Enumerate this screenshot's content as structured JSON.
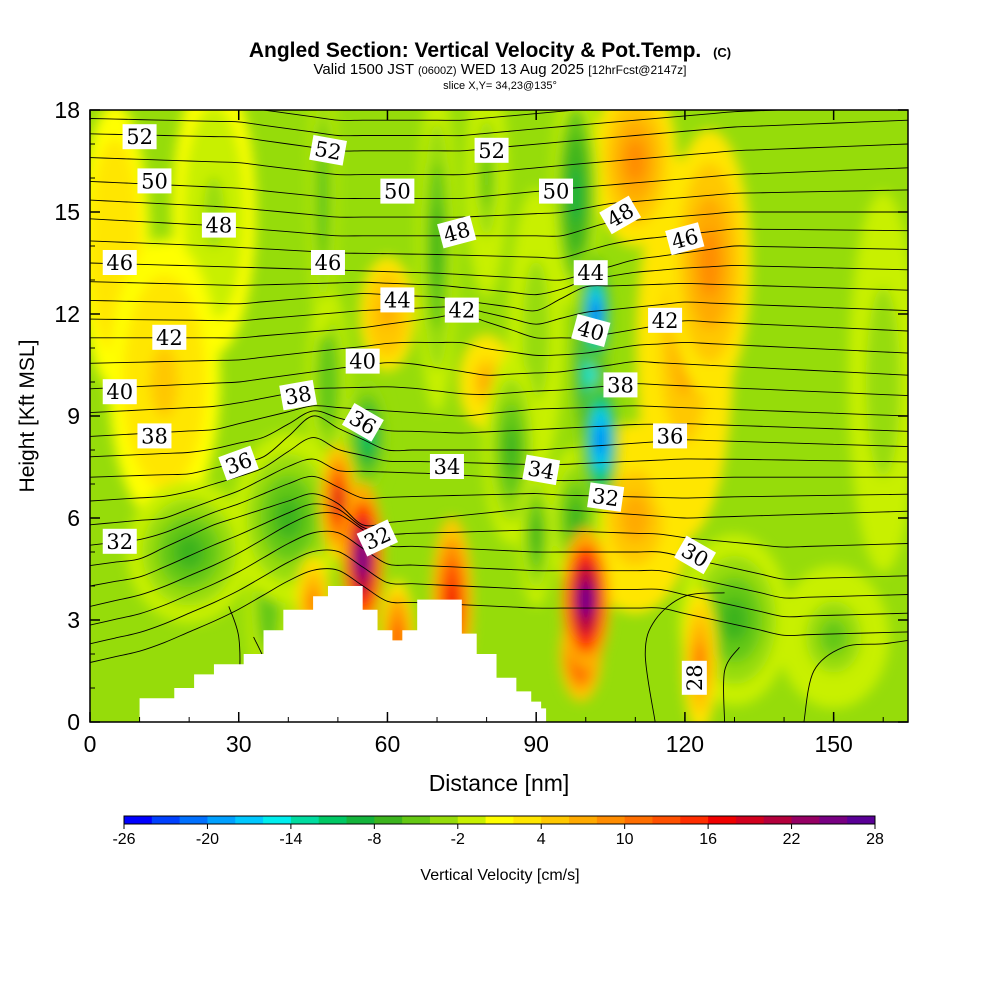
{
  "title": {
    "main": "Angled Section: Vertical Velocity & Pot.Temp.",
    "main_unit": "(C)",
    "valid_prefix": "Valid 1500 JST",
    "valid_utc": "(0600Z)",
    "valid_date": "WED 13 Aug 2025",
    "valid_fcst": "[12hrFcst@2147z]",
    "slice": "slice X,Y= 34,23@135°"
  },
  "chart_data": {
    "type": "heatmap",
    "xlabel": "Distance [nm]",
    "ylabel": "Height [Kft MSL]",
    "xlim": [
      0,
      165
    ],
    "ylim": [
      0,
      18
    ],
    "x_ticks": [
      "0",
      "30",
      "60",
      "90",
      "120",
      "150"
    ],
    "y_ticks": [
      "0",
      "3",
      "6",
      "9",
      "12",
      "15",
      "18"
    ],
    "grid": false,
    "colorbar": {
      "label": "Vertical Velocity [cm/s]",
      "placement": "bottom",
      "min": -26,
      "max": 28,
      "step": 2,
      "tick_labels": [
        "-26",
        "-20",
        "-14",
        "-8",
        "-2",
        "4",
        "10",
        "16",
        "22",
        "28"
      ],
      "colors": [
        "#0000ff",
        "#0040ff",
        "#0070ff",
        "#00a0ff",
        "#00c8ff",
        "#00eeee",
        "#00dca0",
        "#00c864",
        "#14b43c",
        "#3cb41e",
        "#64c814",
        "#96dc0a",
        "#c8f000",
        "#ffff00",
        "#ffe600",
        "#ffc800",
        "#ffaa00",
        "#ff8c00",
        "#ff6e00",
        "#ff5000",
        "#ff2d00",
        "#f00000",
        "#d2001e",
        "#b4003c",
        "#960064",
        "#780082",
        "#5a0096"
      ]
    },
    "w_field": {
      "description_units": "cm/s",
      "background": 1,
      "cells": [
        {
          "x": 55,
          "z": 4.8,
          "sx": 3.0,
          "sz": 1.6,
          "v": 27
        },
        {
          "x": 50,
          "z": 6.5,
          "sx": 2.5,
          "sz": 1.2,
          "v": 18
        },
        {
          "x": 100,
          "z": 3.6,
          "sx": 3.5,
          "sz": 1.5,
          "v": 27
        },
        {
          "x": 99,
          "z": 2.0,
          "sx": 3.0,
          "sz": 1.0,
          "v": 16
        },
        {
          "x": 73,
          "z": 3.5,
          "sx": 3.0,
          "sz": 1.8,
          "v": 17
        },
        {
          "x": 62,
          "z": 2.5,
          "sx": 2.5,
          "sz": 1.2,
          "v": 12
        },
        {
          "x": 45,
          "z": 3.5,
          "sx": 2.5,
          "sz": 1.0,
          "v": 10
        },
        {
          "x": 123,
          "z": 1.8,
          "sx": 2.5,
          "sz": 1.5,
          "v": 10
        },
        {
          "x": 110,
          "z": 6.0,
          "sx": 8.0,
          "sz": 2.0,
          "v": 6
        },
        {
          "x": 125,
          "z": 13.5,
          "sx": 6.0,
          "sz": 2.8,
          "v": 9
        },
        {
          "x": 120,
          "z": 11.0,
          "sx": 7.0,
          "sz": 4.0,
          "v": 6
        },
        {
          "x": 110,
          "z": 16.5,
          "sx": 6.0,
          "sz": 1.8,
          "v": 8
        },
        {
          "x": 60,
          "z": 12.0,
          "sx": 4.0,
          "sz": 1.2,
          "v": 7
        },
        {
          "x": 80,
          "z": 10.0,
          "sx": 4.0,
          "sz": 1.0,
          "v": 6
        },
        {
          "x": 102,
          "z": 12.0,
          "sx": 2.2,
          "sz": 1.2,
          "v": -24
        },
        {
          "x": 103,
          "z": 8.3,
          "sx": 2.6,
          "sz": 1.4,
          "v": -22
        },
        {
          "x": 101,
          "z": 10.5,
          "sx": 3.0,
          "sz": 2.5,
          "v": -15
        },
        {
          "x": 98,
          "z": 15.5,
          "sx": 3.5,
          "sz": 2.5,
          "v": -10
        },
        {
          "x": 98,
          "z": 6.0,
          "sx": 4.0,
          "sz": 1.5,
          "v": -8
        },
        {
          "x": 56,
          "z": 8.4,
          "sx": 3.0,
          "sz": 1.2,
          "v": -12
        },
        {
          "x": 48,
          "z": 10.0,
          "sx": 3.0,
          "sz": 2.0,
          "v": -6
        },
        {
          "x": 40,
          "z": 6.0,
          "sx": 8.0,
          "sz": 1.8,
          "v": -8
        },
        {
          "x": 20,
          "z": 5.0,
          "sx": 9.0,
          "sz": 1.5,
          "v": -7
        },
        {
          "x": 36,
          "z": 3.5,
          "sx": 3.0,
          "sz": 1.8,
          "v": -6
        },
        {
          "x": 85,
          "z": 8.0,
          "sx": 4.0,
          "sz": 2.0,
          "v": -8
        },
        {
          "x": 90,
          "z": 5.5,
          "sx": 2.5,
          "sz": 1.5,
          "v": -8
        },
        {
          "x": 70,
          "z": 14.0,
          "sx": 2.8,
          "sz": 3.5,
          "v": -8
        },
        {
          "x": 47,
          "z": 15.5,
          "sx": 2.0,
          "sz": 3.0,
          "v": -6
        },
        {
          "x": 80,
          "z": 16.0,
          "sx": 3.0,
          "sz": 2.5,
          "v": -5
        },
        {
          "x": 90,
          "z": 11.5,
          "sx": 4.0,
          "sz": 3.0,
          "v": -4
        },
        {
          "x": 130,
          "z": 3.0,
          "sx": 8.0,
          "sz": 1.8,
          "v": -7
        },
        {
          "x": 150,
          "z": 2.5,
          "sx": 8.0,
          "sz": 1.5,
          "v": -5
        },
        {
          "x": 160,
          "z": 10.0,
          "sx": 5.0,
          "sz": 4.0,
          "v": -4
        },
        {
          "x": 15,
          "z": 10.0,
          "sx": 8.0,
          "sz": 3.0,
          "v": 4
        },
        {
          "x": 25,
          "z": 15.0,
          "sx": 6.0,
          "sz": 3.0,
          "v": -3
        },
        {
          "x": 5,
          "z": 14.0,
          "sx": 5.0,
          "sz": 3.0,
          "v": 3
        }
      ]
    },
    "terrain_profile": [
      [
        0,
        0
      ],
      [
        10,
        0
      ],
      [
        10,
        0.7
      ],
      [
        15,
        0.7
      ],
      [
        17,
        1.0
      ],
      [
        21,
        1.4
      ],
      [
        25,
        1.7
      ],
      [
        31,
        2.0
      ],
      [
        35,
        2.7
      ],
      [
        39,
        3.3
      ],
      [
        45,
        3.7
      ],
      [
        48,
        4.0
      ],
      [
        52,
        4.0
      ],
      [
        55,
        3.3
      ],
      [
        58,
        2.7
      ],
      [
        61,
        2.4
      ],
      [
        63,
        2.7
      ],
      [
        66,
        3.6
      ],
      [
        72,
        3.6
      ],
      [
        75,
        2.6
      ],
      [
        78,
        2.0
      ],
      [
        82,
        1.3
      ],
      [
        86,
        0.9
      ],
      [
        89,
        0.6
      ],
      [
        91,
        0.4
      ],
      [
        92,
        0
      ],
      [
        165,
        0
      ]
    ],
    "theta_isolines": [
      {
        "theta": 52,
        "pts": [
          [
            0,
            17.3
          ],
          [
            30,
            17.2
          ],
          [
            50,
            16.8
          ],
          [
            75,
            16.8
          ],
          [
            98,
            17.1
          ],
          [
            130,
            17.5
          ],
          [
            165,
            17.7
          ]
        ]
      },
      {
        "theta": 50,
        "pts": [
          [
            0,
            15.9
          ],
          [
            30,
            15.7
          ],
          [
            50,
            15.4
          ],
          [
            75,
            15.4
          ],
          [
            97,
            15.7
          ],
          [
            130,
            16.1
          ],
          [
            165,
            16.3
          ]
        ]
      },
      {
        "theta": 48,
        "pts": [
          [
            0,
            14.8
          ],
          [
            25,
            14.6
          ],
          [
            50,
            14.3
          ],
          [
            72,
            14.3
          ],
          [
            95,
            14.3
          ],
          [
            105,
            14.7
          ],
          [
            130,
            15.0
          ],
          [
            165,
            15.0
          ]
        ]
      },
      {
        "theta": 46,
        "pts": [
          [
            0,
            13.5
          ],
          [
            25,
            13.4
          ],
          [
            48,
            13.3
          ],
          [
            70,
            13.2
          ],
          [
            95,
            13.0
          ],
          [
            110,
            13.6
          ],
          [
            130,
            14.0
          ],
          [
            165,
            13.9
          ]
        ]
      },
      {
        "theta": 44,
        "pts": [
          [
            0,
            12.4
          ],
          [
            30,
            12.3
          ],
          [
            55,
            12.6
          ],
          [
            70,
            12.5
          ],
          [
            90,
            12.1
          ],
          [
            100,
            12.8
          ],
          [
            120,
            12.9
          ],
          [
            165,
            12.7
          ]
        ]
      },
      {
        "theta": 42,
        "pts": [
          [
            0,
            11.3
          ],
          [
            30,
            11.3
          ],
          [
            55,
            11.6
          ],
          [
            75,
            12.0
          ],
          [
            90,
            11.3
          ],
          [
            100,
            11.3
          ],
          [
            120,
            11.8
          ],
          [
            165,
            11.5
          ]
        ]
      },
      {
        "theta": 40,
        "pts": [
          [
            0,
            9.8
          ],
          [
            30,
            10.0
          ],
          [
            50,
            10.4
          ],
          [
            62,
            10.6
          ],
          [
            80,
            10.2
          ],
          [
            95,
            10.3
          ],
          [
            110,
            10.6
          ],
          [
            165,
            10.2
          ]
        ]
      },
      {
        "theta": 38,
        "pts": [
          [
            0,
            8.4
          ],
          [
            25,
            8.6
          ],
          [
            45,
            9.3
          ],
          [
            55,
            9.2
          ],
          [
            75,
            9.0
          ],
          [
            90,
            9.2
          ],
          [
            110,
            9.3
          ],
          [
            165,
            9.0
          ]
        ]
      },
      {
        "theta": 36,
        "pts": [
          [
            0,
            7.2
          ],
          [
            20,
            7.3
          ],
          [
            35,
            7.8
          ],
          [
            45,
            9.0
          ],
          [
            52,
            8.5
          ],
          [
            60,
            8.0
          ],
          [
            90,
            8.0
          ],
          [
            120,
            8.3
          ],
          [
            165,
            8.1
          ]
        ]
      },
      {
        "theta": 34,
        "pts": [
          [
            0,
            5.8
          ],
          [
            15,
            6.0
          ],
          [
            30,
            6.8
          ],
          [
            44,
            7.8
          ],
          [
            50,
            7.4
          ],
          [
            70,
            7.3
          ],
          [
            95,
            7.1
          ],
          [
            130,
            7.2
          ],
          [
            165,
            7.2
          ]
        ]
      },
      {
        "theta": 32,
        "pts": [
          [
            0,
            4.6
          ],
          [
            10,
            4.8
          ],
          [
            25,
            5.8
          ],
          [
            40,
            6.5
          ],
          [
            47,
            6.8
          ],
          [
            55,
            5.8
          ],
          [
            70,
            6.0
          ],
          [
            90,
            6.3
          ],
          [
            120,
            6.0
          ],
          [
            165,
            6.2
          ]
        ]
      },
      {
        "theta": 30,
        "pts": [
          [
            0,
            3.4
          ],
          [
            12,
            3.8
          ],
          [
            28,
            4.8
          ],
          [
            40,
            5.8
          ],
          [
            48,
            6.3
          ],
          [
            60,
            5.2
          ],
          [
            90,
            5.0
          ],
          [
            115,
            5.0
          ],
          [
            140,
            4.2
          ],
          [
            165,
            4.3
          ]
        ]
      }
    ],
    "theta_labels": [
      {
        "text": "52",
        "x": 10,
        "z": 17.2,
        "rot": 0
      },
      {
        "text": "50",
        "x": 13,
        "z": 15.9,
        "rot": 0
      },
      {
        "text": "48",
        "x": 26,
        "z": 14.6,
        "rot": 0
      },
      {
        "text": "46",
        "x": 6,
        "z": 13.5,
        "rot": 0
      },
      {
        "text": "42",
        "x": 16,
        "z": 11.3,
        "rot": 0
      },
      {
        "text": "40",
        "x": 6,
        "z": 9.7,
        "rot": 0
      },
      {
        "text": "38",
        "x": 13,
        "z": 8.4,
        "rot": 0
      },
      {
        "text": "36",
        "x": 30,
        "z": 7.6,
        "rot": -20
      },
      {
        "text": "32",
        "x": 6,
        "z": 5.3,
        "rot": 0
      },
      {
        "text": "52",
        "x": 48,
        "z": 16.8,
        "rot": 10
      },
      {
        "text": "50",
        "x": 62,
        "z": 15.6,
        "rot": 0
      },
      {
        "text": "46",
        "x": 48,
        "z": 13.5,
        "rot": 0
      },
      {
        "text": "44",
        "x": 62,
        "z": 12.4,
        "rot": 0
      },
      {
        "text": "40",
        "x": 55,
        "z": 10.6,
        "rot": 0
      },
      {
        "text": "38",
        "x": 42,
        "z": 9.6,
        "rot": -10
      },
      {
        "text": "36",
        "x": 55,
        "z": 8.8,
        "rot": 30
      },
      {
        "text": "32",
        "x": 58,
        "z": 5.4,
        "rot": -25
      },
      {
        "text": "48",
        "x": 74,
        "z": 14.4,
        "rot": -15
      },
      {
        "text": "42",
        "x": 75,
        "z": 12.1,
        "rot": 0
      },
      {
        "text": "34",
        "x": 72,
        "z": 7.5,
        "rot": 0
      },
      {
        "text": "52",
        "x": 81,
        "z": 16.8,
        "rot": 0
      },
      {
        "text": "50",
        "x": 94,
        "z": 15.6,
        "rot": 0
      },
      {
        "text": "34",
        "x": 91,
        "z": 7.4,
        "rot": 10
      },
      {
        "text": "44",
        "x": 101,
        "z": 13.2,
        "rot": 0
      },
      {
        "text": "48",
        "x": 107,
        "z": 14.9,
        "rot": -30
      },
      {
        "text": "40",
        "x": 101,
        "z": 11.5,
        "rot": 15
      },
      {
        "text": "38",
        "x": 107,
        "z": 9.9,
        "rot": 0
      },
      {
        "text": "36",
        "x": 117,
        "z": 8.4,
        "rot": 0
      },
      {
        "text": "32",
        "x": 104,
        "z": 6.6,
        "rot": 8
      },
      {
        "text": "46",
        "x": 120,
        "z": 14.2,
        "rot": -15
      },
      {
        "text": "42",
        "x": 116,
        "z": 11.8,
        "rot": 0
      },
      {
        "text": "30",
        "x": 122,
        "z": 4.9,
        "rot": 30
      },
      {
        "text": "28",
        "x": 122,
        "z": 1.3,
        "rot": -90
      }
    ],
    "theta_28_contours": [
      [
        [
          28,
          0.3
        ],
        [
          30,
          1.2
        ],
        [
          30,
          2.5
        ],
        [
          28,
          3.4
        ]
      ],
      [
        [
          38,
          0
        ],
        [
          36,
          1.5
        ],
        [
          33,
          2.5
        ]
      ],
      [
        [
          114,
          0
        ],
        [
          112,
          2.0
        ],
        [
          114,
          3.0
        ],
        [
          120,
          3.7
        ],
        [
          128,
          3.8
        ]
      ],
      [
        [
          128,
          0
        ],
        [
          128,
          1.5
        ],
        [
          131,
          2.2
        ]
      ],
      [
        [
          144,
          0
        ],
        [
          146,
          1.5
        ],
        [
          152,
          2.2
        ],
        [
          160,
          2.3
        ],
        [
          165,
          2.4
        ]
      ]
    ]
  }
}
